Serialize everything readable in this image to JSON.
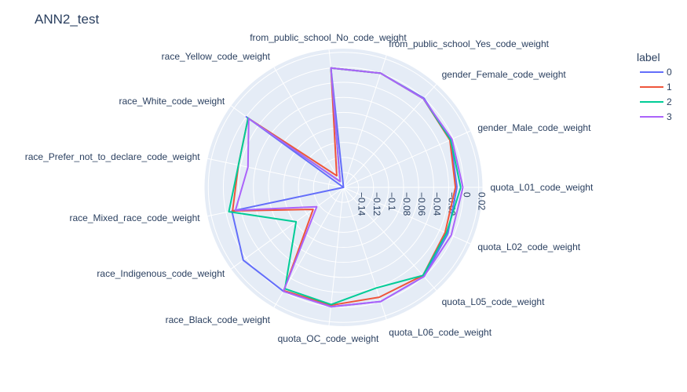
{
  "chart_data": {
    "type": "radar",
    "title": "ANN2_test",
    "legend_title": "label",
    "legend_position": "top-right",
    "grid": true,
    "radial_range": [
      -0.16,
      0.025
    ],
    "radial_ticks": [
      -0.14,
      -0.12,
      -0.1,
      -0.08,
      -0.06,
      -0.04,
      -0.02,
      0,
      0.02
    ],
    "radial_tick_labels": [
      "−0.14",
      "−0.12",
      "−0.1",
      "−0.08",
      "−0.06",
      "−0.04",
      "−0.02",
      "0",
      "0.02"
    ],
    "categories": [
      "quota_L01_code_weight",
      "quota_L02_code_weight",
      "quota_L05_code_weight",
      "quota_L06_code_weight",
      "quota_OC_code_weight",
      "race_Black_code_weight",
      "race_Indigenous_code_weight",
      "race_Mixed_race_code_weight",
      "race_Prefer_not_to_declare_code_weight",
      "race_White_code_weight",
      "race_Yellow_code_weight",
      "from_public_school_No_code_weight",
      "from_public_school_Yes_code_weight",
      "gender_Female_code_weight",
      "gender_Male_code_weight"
    ],
    "series": [
      {
        "name": "0",
        "color": "#636efa",
        "values": [
          -0.009,
          -0.008,
          0.0,
          0.0,
          0.0,
          0.0,
          0.005,
          -0.008,
          -0.16,
          0.0,
          -0.16,
          0.0,
          0.0,
          0.0,
          -0.004
        ]
      },
      {
        "name": "1",
        "color": "#ef553b",
        "values": [
          -0.011,
          -0.012,
          -0.002,
          -0.006,
          -0.002,
          -0.001,
          -0.11,
          -0.009,
          -0.017,
          -0.003,
          -0.142,
          0.0,
          0.0,
          -0.001,
          -0.005
        ]
      },
      {
        "name": "2",
        "color": "#00cc96",
        "values": [
          -0.004,
          -0.01,
          -0.002,
          -0.019,
          -0.003,
          -0.004,
          -0.082,
          -0.004,
          -0.017,
          -0.003,
          -0.151,
          0.0,
          0.0,
          -0.001,
          -0.004
        ]
      },
      {
        "name": "3",
        "color": "#ab63fa",
        "values": [
          -0.001,
          -0.003,
          0.0,
          0.0,
          0.0,
          0.0,
          -0.116,
          -0.013,
          -0.03,
          -0.004,
          -0.151,
          0.0,
          0.0,
          -0.001,
          -0.002
        ]
      }
    ]
  }
}
